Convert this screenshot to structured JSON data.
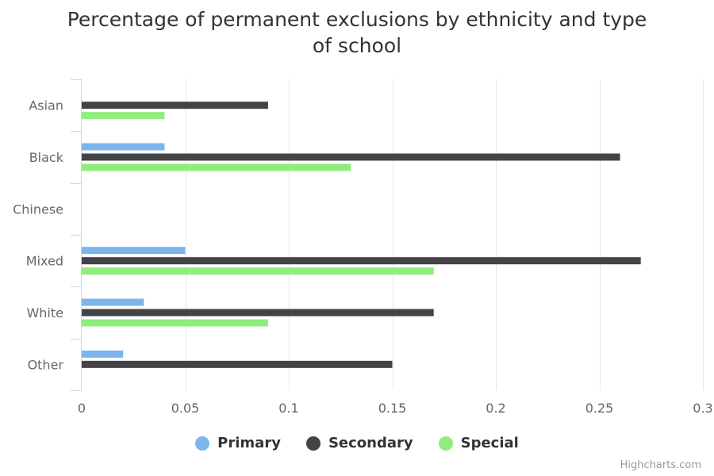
{
  "title_lines": [
    "Percentage of permanent exclusions by ethnicity and type",
    "of school"
  ],
  "credits": "Highcharts.com",
  "chart_data": {
    "type": "bar",
    "orientation": "horizontal",
    "title": "Percentage of permanent exclusions by ethnicity and type of school",
    "categories": [
      "Asian",
      "Black",
      "Chinese",
      "Mixed",
      "White",
      "Other"
    ],
    "series": [
      {
        "name": "Primary",
        "color": "#7cb5ec",
        "values": [
          0,
          0.04,
          0,
          0.05,
          0.03,
          0.02
        ]
      },
      {
        "name": "Secondary",
        "color": "#434348",
        "values": [
          0.09,
          0.26,
          0,
          0.27,
          0.17,
          0.15
        ]
      },
      {
        "name": "Special",
        "color": "#90ed7d",
        "values": [
          0.04,
          0.13,
          0,
          0.17,
          0.09,
          0
        ]
      }
    ],
    "xlim": [
      0,
      0.3
    ],
    "ticks": [
      "0",
      "0.05",
      "0.1",
      "0.15",
      "0.2",
      "0.25",
      "0.3"
    ],
    "grid": true,
    "legend_position": "bottom-center",
    "xlabel": "",
    "ylabel": ""
  }
}
